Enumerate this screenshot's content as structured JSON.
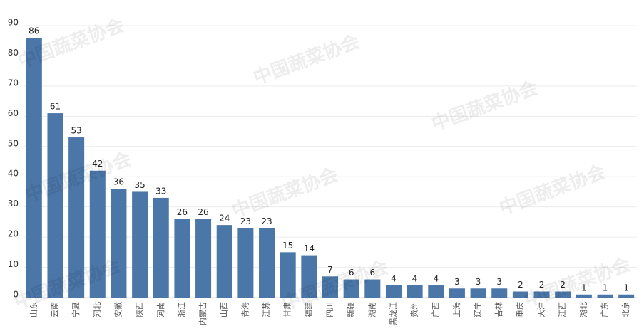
{
  "chart_data": {
    "type": "bar",
    "watermark": "中国蔬菜协会",
    "categories": [
      "山东",
      "云南",
      "宁夏",
      "河北",
      "安徽",
      "陕西",
      "河南",
      "浙江",
      "内蒙古",
      "山西",
      "青海",
      "江苏",
      "甘肃",
      "福建",
      "四川",
      "新疆",
      "湖南",
      "黑龙江",
      "贵州",
      "广西",
      "上海",
      "辽宁",
      "吉林",
      "重庆",
      "天津",
      "江西",
      "湖北",
      "广东",
      "北京"
    ],
    "values": [
      86,
      61,
      53,
      42,
      36,
      35,
      33,
      26,
      26,
      24,
      23,
      23,
      15,
      14,
      7,
      6,
      6,
      4,
      4,
      4,
      3,
      3,
      3,
      2,
      2,
      2,
      1,
      1,
      1
    ],
    "color": "#4a76a8",
    "ylim": [
      0,
      90
    ],
    "yticks": [
      0,
      10,
      20,
      30,
      40,
      50,
      60,
      70,
      80,
      90
    ],
    "grid": true
  }
}
